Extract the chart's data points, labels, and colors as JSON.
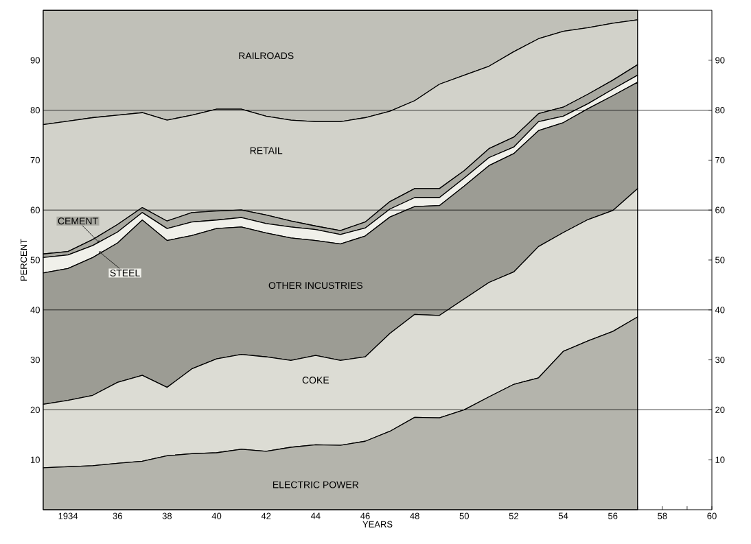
{
  "chart_data": {
    "type": "area",
    "stacked": true,
    "xlabel": "YEARS",
    "ylabel": "PERCENT",
    "x": [
      1933,
      1934,
      1935,
      1936,
      1937,
      1938,
      1939,
      1940,
      1941,
      1942,
      1943,
      1944,
      1945,
      1946,
      1947,
      1948,
      1949,
      1950,
      1951,
      1952,
      1953,
      1954,
      1955,
      1956,
      1957
    ],
    "series": [
      {
        "name": "ELECTRIC POWER",
        "color": "#b4b4ac",
        "values": [
          8.4,
          8.6,
          8.8,
          9.3,
          9.7,
          10.8,
          11.2,
          11.4,
          12.1,
          11.7,
          12.5,
          13.0,
          12.9,
          13.7,
          15.7,
          18.5,
          18.4,
          20.0,
          22.6,
          25.1,
          26.4,
          31.7,
          33.8,
          35.7,
          38.6
        ]
      },
      {
        "name": "COKE",
        "color": "#dcdcd4",
        "values": [
          12.7,
          13.3,
          14.1,
          16.2,
          17.2,
          13.7,
          17.0,
          18.8,
          19.0,
          18.9,
          17.4,
          17.9,
          17.0,
          16.9,
          19.6,
          20.6,
          20.5,
          22.2,
          22.9,
          22.5,
          26.3,
          23.8,
          24.3,
          24.2,
          25.7
        ]
      },
      {
        "name": "OTHER INCUSTRIES",
        "color": "#9c9c94",
        "values": [
          26.3,
          26.4,
          27.6,
          27.9,
          31.1,
          29.4,
          26.7,
          26.1,
          25.5,
          24.8,
          24.5,
          23.0,
          23.3,
          24.2,
          23.3,
          21.6,
          22.0,
          22.6,
          23.4,
          23.7,
          23.2,
          22.0,
          22.2,
          23.0,
          21.3
        ]
      },
      {
        "name": "STEEL",
        "color": "#f0f0ea",
        "values": [
          3.1,
          2.7,
          2.4,
          2.2,
          1.5,
          2.4,
          2.7,
          1.7,
          1.9,
          1.9,
          2.2,
          2.2,
          1.9,
          1.6,
          1.6,
          1.8,
          1.6,
          1.6,
          1.6,
          1.3,
          1.8,
          1.3,
          1.0,
          1.3,
          1.4
        ]
      },
      {
        "name": "CEMENT",
        "color": "#a8a8a0",
        "values": [
          0.7,
          0.7,
          1.2,
          1.5,
          1.0,
          1.5,
          1.9,
          1.8,
          1.5,
          1.7,
          1.2,
          0.7,
          0.8,
          1.2,
          1.5,
          1.8,
          1.8,
          1.5,
          1.8,
          2.0,
          1.6,
          1.8,
          1.9,
          1.8,
          2.1
        ]
      },
      {
        "name": "RETAIL",
        "color": "#d2d2ca",
        "values": [
          25.9,
          26.1,
          24.4,
          21.9,
          19.0,
          20.2,
          19.5,
          20.4,
          20.2,
          19.8,
          20.2,
          20.9,
          21.8,
          20.9,
          18.1,
          17.6,
          20.9,
          19.1,
          16.5,
          17.1,
          15.0,
          15.2,
          13.3,
          11.4,
          9.0
        ]
      },
      {
        "name": "RAILROADS",
        "color": "#c0c0b8",
        "values": [
          22.9,
          22.2,
          21.5,
          21.0,
          20.5,
          22.0,
          21.0,
          19.8,
          19.8,
          21.2,
          22.0,
          22.3,
          22.3,
          21.5,
          20.2,
          18.1,
          14.8,
          13.0,
          11.2,
          8.3,
          5.7,
          4.2,
          3.5,
          2.6,
          1.9
        ]
      }
    ],
    "xlim": [
      1933,
      1960
    ],
    "xticks": [
      {
        "value": 1934,
        "label": "1934"
      },
      {
        "value": 1935,
        "label": null
      },
      {
        "value": 1936,
        "label": "36"
      },
      {
        "value": 1937,
        "label": null
      },
      {
        "value": 1938,
        "label": "38"
      },
      {
        "value": 1939,
        "label": null
      },
      {
        "value": 1940,
        "label": "40"
      },
      {
        "value": 1941,
        "label": null
      },
      {
        "value": 1942,
        "label": "42"
      },
      {
        "value": 1943,
        "label": null
      },
      {
        "value": 1944,
        "label": "44"
      },
      {
        "value": 1945,
        "label": null
      },
      {
        "value": 1946,
        "label": "46"
      },
      {
        "value": 1947,
        "label": null
      },
      {
        "value": 1948,
        "label": "48"
      },
      {
        "value": 1949,
        "label": null
      },
      {
        "value": 1950,
        "label": "50"
      },
      {
        "value": 1951,
        "label": null
      },
      {
        "value": 1952,
        "label": "52"
      },
      {
        "value": 1953,
        "label": null
      },
      {
        "value": 1954,
        "label": "54"
      },
      {
        "value": 1955,
        "label": null
      },
      {
        "value": 1956,
        "label": "56"
      },
      {
        "value": 1957,
        "label": null
      },
      {
        "value": 1958,
        "label": "58"
      },
      {
        "value": 1959,
        "label": null
      },
      {
        "value": 1960,
        "label": "60"
      }
    ],
    "ylim": [
      0,
      100
    ],
    "yticks": [
      10,
      20,
      30,
      40,
      50,
      60,
      70,
      80,
      90
    ],
    "y2lim": [
      0,
      100
    ],
    "y2ticks": [
      10,
      20,
      30,
      40,
      50,
      60,
      70,
      80,
      90
    ],
    "ref_lines": [
      {
        "axis": "y",
        "value": 20
      },
      {
        "axis": "y",
        "value": 40
      },
      {
        "axis": "y",
        "value": 60
      },
      {
        "axis": "y",
        "value": 80
      }
    ]
  }
}
